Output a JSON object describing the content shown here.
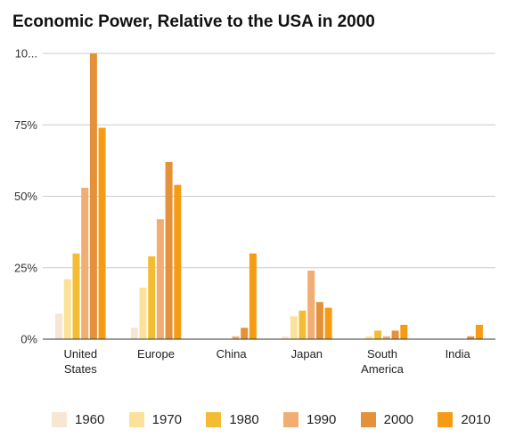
{
  "chart_data": {
    "type": "bar",
    "title": "Economic Power, Relative to the USA in 2000",
    "categories": [
      [
        "United",
        "States"
      ],
      [
        "Europe"
      ],
      [
        "China"
      ],
      [
        "Japan"
      ],
      [
        "South",
        "America"
      ],
      [
        "India"
      ]
    ],
    "y_ticks": [
      "0%",
      "25%",
      "50%",
      "75%",
      "10..."
    ],
    "ylim": [
      0,
      100
    ],
    "grid": true,
    "legend_position": "bottom",
    "series": [
      {
        "name": "1960",
        "color": "#f8e6d4",
        "values": [
          9,
          4,
          0,
          1,
          0,
          0
        ]
      },
      {
        "name": "1970",
        "color": "#fbe29a",
        "values": [
          21,
          18,
          0,
          8,
          1,
          0
        ]
      },
      {
        "name": "1980",
        "color": "#f3bd33",
        "values": [
          30,
          29,
          0,
          10,
          3,
          0
        ]
      },
      {
        "name": "1990",
        "color": "#f2ae72",
        "values": [
          53,
          42,
          1,
          24,
          1,
          0
        ]
      },
      {
        "name": "2000",
        "color": "#e59139",
        "values": [
          100,
          62,
          4,
          13,
          3,
          1
        ]
      },
      {
        "name": "2010",
        "color": "#f69c14",
        "values": [
          74,
          54,
          30,
          11,
          5,
          5
        ]
      }
    ]
  }
}
